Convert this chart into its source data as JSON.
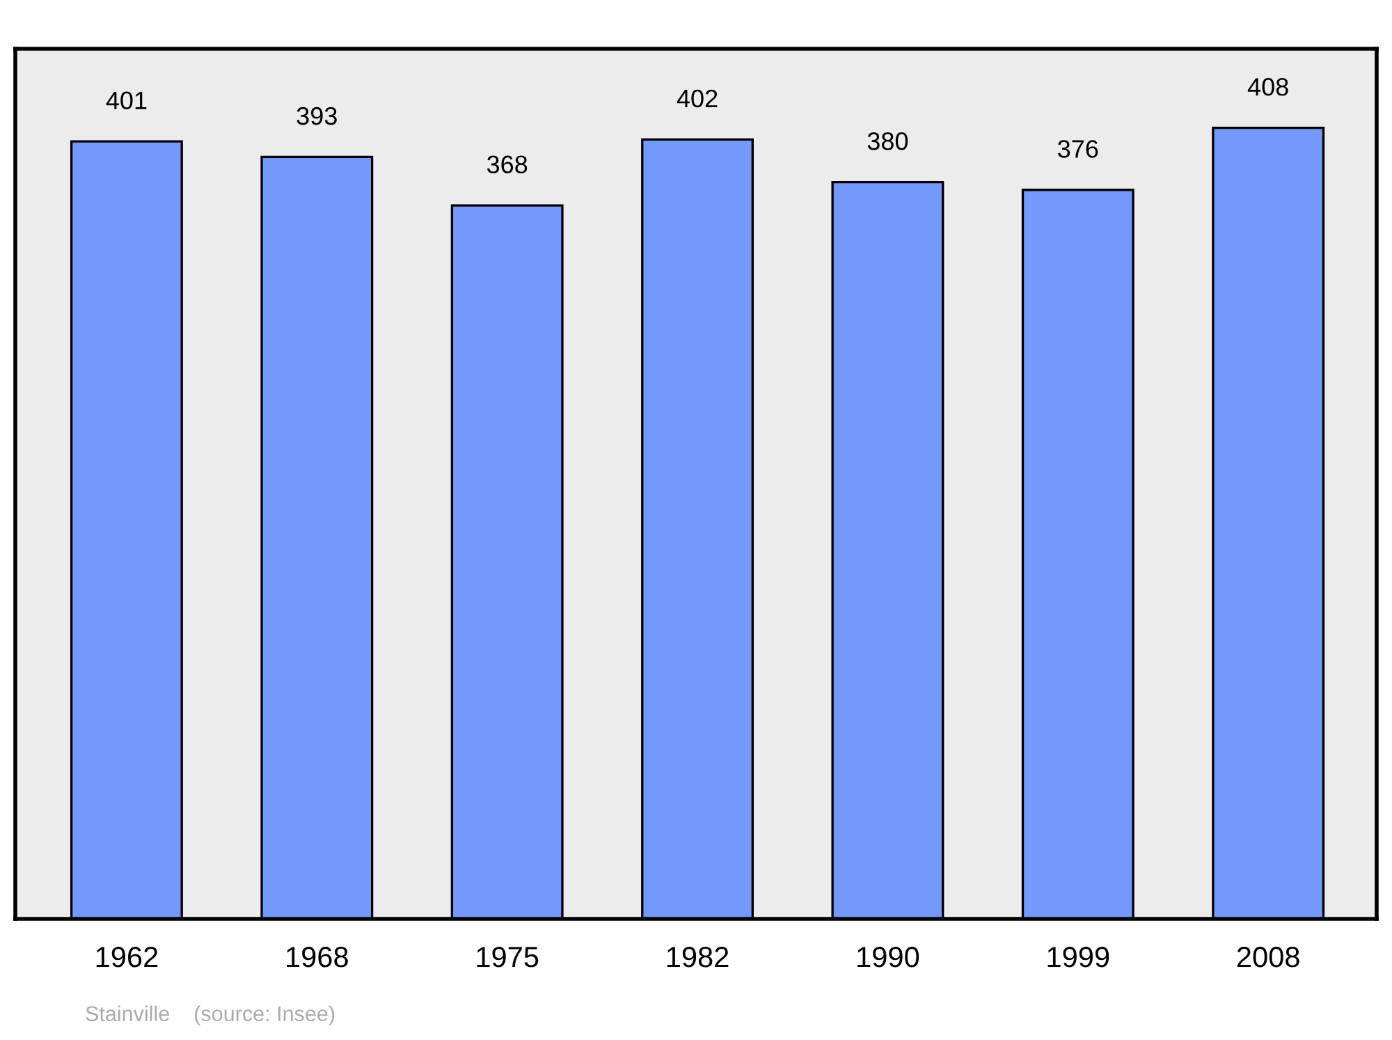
{
  "chart_data": {
    "type": "bar",
    "categories": [
      "1962",
      "1968",
      "1975",
      "1982",
      "1990",
      "1999",
      "2008"
    ],
    "values": [
      401,
      393,
      368,
      402,
      380,
      376,
      408
    ],
    "color": "#7399ff",
    "data_labels": true,
    "grid": false,
    "tick_labels": "x",
    "annotations": [
      "Stainville    (source: Insee)"
    ]
  }
}
